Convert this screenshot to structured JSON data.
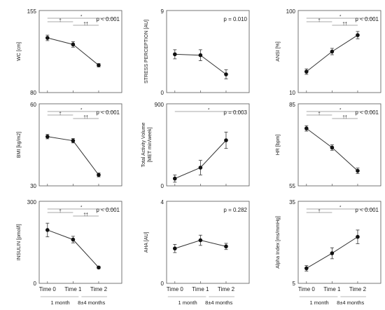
{
  "x_axis": {
    "ticks": [
      "Time 0",
      "Time 1",
      "Time 2"
    ],
    "spans": [
      "1 month",
      "8±4 months"
    ]
  },
  "chart_data": [
    {
      "type": "line",
      "title": "",
      "xlabel": "",
      "ylabel": "WC [cm]",
      "ylim": [
        80,
        155
      ],
      "yticks": [
        "155",
        "80"
      ],
      "categories": [
        "Time 0",
        "Time 1",
        "Time 2"
      ],
      "values": [
        130,
        124,
        105
      ],
      "error": [
        2.5,
        2.5,
        1.5
      ],
      "p_label": "p < 0.001",
      "markers": [
        "*",
        "†",
        "††"
      ]
    },
    {
      "type": "line",
      "title": "",
      "xlabel": "",
      "ylabel": "STRESS PERCEPTION [AU]",
      "ylim": [
        0,
        9
      ],
      "yticks": [
        "9",
        "0"
      ],
      "categories": [
        "Time 0",
        "Time 1",
        "Time 2"
      ],
      "values": [
        4.2,
        4.1,
        2.0
      ],
      "error": [
        0.5,
        0.6,
        0.5
      ],
      "p_label": "p = 0.010",
      "markers": []
    },
    {
      "type": "line",
      "title": "",
      "xlabel": "",
      "ylabel": "ANSI [%]",
      "ylim": [
        10,
        100
      ],
      "yticks": [
        "100",
        "10"
      ],
      "categories": [
        "Time 0",
        "Time 1",
        "Time 2"
      ],
      "values": [
        33,
        55,
        73
      ],
      "error": [
        3,
        3.5,
        4
      ],
      "p_label": "p < 0.001",
      "markers": [
        "*",
        "†",
        "††"
      ]
    },
    {
      "type": "line",
      "title": "",
      "xlabel": "",
      "ylabel": "BMI [kg/m2]",
      "ylim": [
        30,
        60
      ],
      "yticks": [
        "60",
        "30"
      ],
      "categories": [
        "Time 0",
        "Time 1",
        "Time 2"
      ],
      "values": [
        48,
        46.5,
        34
      ],
      "error": [
        0.8,
        0.8,
        0.7
      ],
      "p_label": "p < 0.001",
      "markers": [
        "*",
        "†",
        "††"
      ]
    },
    {
      "type": "line",
      "title": "",
      "xlabel": "",
      "ylabel": "Total Activity Volume [MET min/week]",
      "ylim": [
        0,
        900
      ],
      "yticks": [
        "900",
        "0"
      ],
      "categories": [
        "Time 0",
        "Time 1",
        "Time 2"
      ],
      "values": [
        80,
        200,
        500
      ],
      "error": [
        40,
        80,
        90
      ],
      "p_label": "p = 0.003",
      "markers": [
        "*"
      ]
    },
    {
      "type": "line",
      "title": "",
      "xlabel": "",
      "ylabel": "HR [bpm]",
      "ylim": [
        55,
        85
      ],
      "yticks": [
        "85",
        "55"
      ],
      "categories": [
        "Time 0",
        "Time 1",
        "Time 2"
      ],
      "values": [
        76,
        69,
        60.5
      ],
      "error": [
        1,
        1,
        1
      ],
      "p_label": "p < 0.001",
      "markers": [
        "*",
        "†",
        "††"
      ]
    },
    {
      "type": "line",
      "title": "",
      "xlabel": "",
      "ylabel": "INSULIN [pmol/l]",
      "ylim": [
        0,
        300
      ],
      "yticks": [
        "300",
        "0"
      ],
      "categories": [
        "Time 0",
        "Time 1",
        "Time 2"
      ],
      "values": [
        195,
        160,
        58
      ],
      "error": [
        25,
        12,
        4
      ],
      "p_label": "p < 0.001",
      "markers": [
        "*",
        "†",
        "††"
      ]
    },
    {
      "type": "line",
      "title": "",
      "xlabel": "",
      "ylabel": "AHA [AU]",
      "ylim": [
        0,
        4
      ],
      "yticks": [
        "4",
        "0"
      ],
      "categories": [
        "Time 0",
        "Time 1",
        "Time 2"
      ],
      "values": [
        1.7,
        2.1,
        1.8
      ],
      "error": [
        0.2,
        0.25,
        0.15
      ],
      "p_label": "p = 0.282",
      "markers": []
    },
    {
      "type": "line",
      "title": "",
      "xlabel": "",
      "ylabel": "Alpha Index [ms/mmHg]",
      "ylim": [
        5,
        35
      ],
      "yticks": [
        "35",
        "5"
      ],
      "categories": [
        "Time 0",
        "Time 1",
        "Time 2"
      ],
      "values": [
        10.5,
        16,
        22
      ],
      "error": [
        1,
        2,
        2.5
      ],
      "p_label": "p < 0.001",
      "markers": [
        "*",
        "†"
      ]
    }
  ]
}
